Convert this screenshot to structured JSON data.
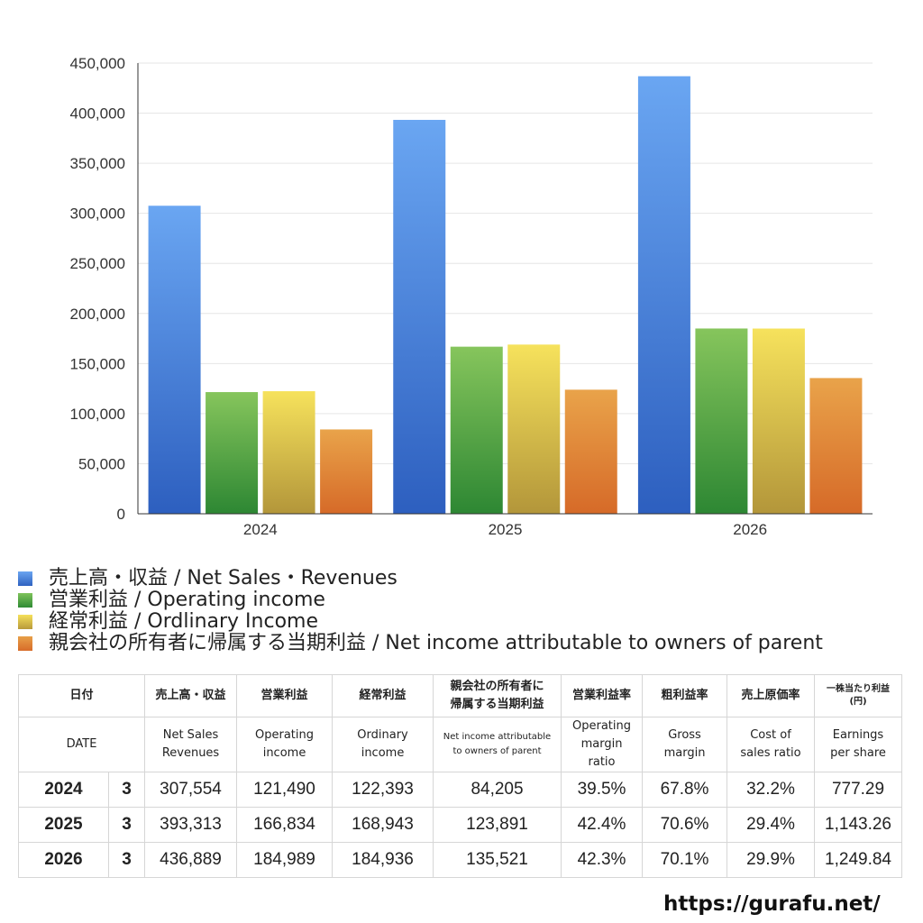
{
  "chart_data": {
    "type": "bar",
    "categories": [
      "2024",
      "2025",
      "2026"
    ],
    "series": [
      {
        "name": "売上高・収益 / Net Sales・Revenues",
        "values": [
          307554,
          393313,
          436889
        ],
        "color": "#4a87e0"
      },
      {
        "name": "営業利益 / Operating income",
        "values": [
          121490,
          166834,
          184989
        ],
        "color": "#4fa847"
      },
      {
        "name": "経常利益 / Ordlinary Income",
        "values": [
          122393,
          168943,
          184936
        ],
        "color": "#e0c845"
      },
      {
        "name": "親会社の所有者に帰属する当期利益 / Net income attributable to owners of parent",
        "values": [
          84205,
          123891,
          135521
        ],
        "color": "#e08a3a"
      }
    ],
    "ylim": [
      0,
      450000
    ],
    "yticks": [
      "0",
      "50,000",
      "100,000",
      "150,000",
      "200,000",
      "250,000",
      "300,000",
      "350,000",
      "400,000",
      "450,000"
    ],
    "grid": true,
    "legend_position": "bottom"
  },
  "legend": [
    {
      "label": "売上高・収益 / Net Sales・Revenues",
      "color": "#4a87e0"
    },
    {
      "label": "営業利益 / Operating income",
      "color": "#4fa847"
    },
    {
      "label": "経常利益 / Ordlinary Income",
      "color": "#e0c845"
    },
    {
      "label": "親会社の所有者に帰属する当期利益 / Net income attributable to owners of parent",
      "color": "#e08a3a"
    }
  ],
  "table": {
    "header_ja": {
      "date": "日付",
      "sales": "売上高・収益",
      "op": "営業利益",
      "ord": "経常利益",
      "net_1": "親会社の所有者に",
      "net_2": "帰属する当期利益",
      "op_margin": "営業利益率",
      "gross": "粗利益率",
      "cost": "売上原価率",
      "eps_1": "一株当たり利益",
      "eps_2": "(円)"
    },
    "header_en": {
      "date": "DATE",
      "sales_1": "Net Sales",
      "sales_2": "Revenues",
      "op_1": "Operating",
      "op_2": "income",
      "ord_1": "Ordinary",
      "ord_2": "income",
      "net_1": "Net income attributable",
      "net_2": "to owners of parent",
      "opm_1": "Operating",
      "opm_2": "margin",
      "opm_3": "ratio",
      "gross_1": "Gross",
      "gross_2": "margin",
      "cost_1": "Cost of",
      "cost_2": "sales ratio",
      "eps_1": "Earnings",
      "eps_2": "per share"
    },
    "rows": [
      {
        "year": "2024",
        "month": "3",
        "sales": "307,554",
        "op": "121,490",
        "ord": "122,393",
        "net": "84,205",
        "op_margin": "39.5%",
        "gross": "67.8%",
        "cost": "32.2%",
        "eps": "777.29"
      },
      {
        "year": "2025",
        "month": "3",
        "sales": "393,313",
        "op": "166,834",
        "ord": "168,943",
        "net": "123,891",
        "op_margin": "42.4%",
        "gross": "70.6%",
        "cost": "29.4%",
        "eps": "1,143.26"
      },
      {
        "year": "2026",
        "month": "3",
        "sales": "436,889",
        "op": "184,989",
        "ord": "184,936",
        "net": "135,521",
        "op_margin": "42.3%",
        "gross": "70.1%",
        "cost": "29.9%",
        "eps": "1,249.84"
      }
    ]
  },
  "site": "https://gurafu.net/"
}
